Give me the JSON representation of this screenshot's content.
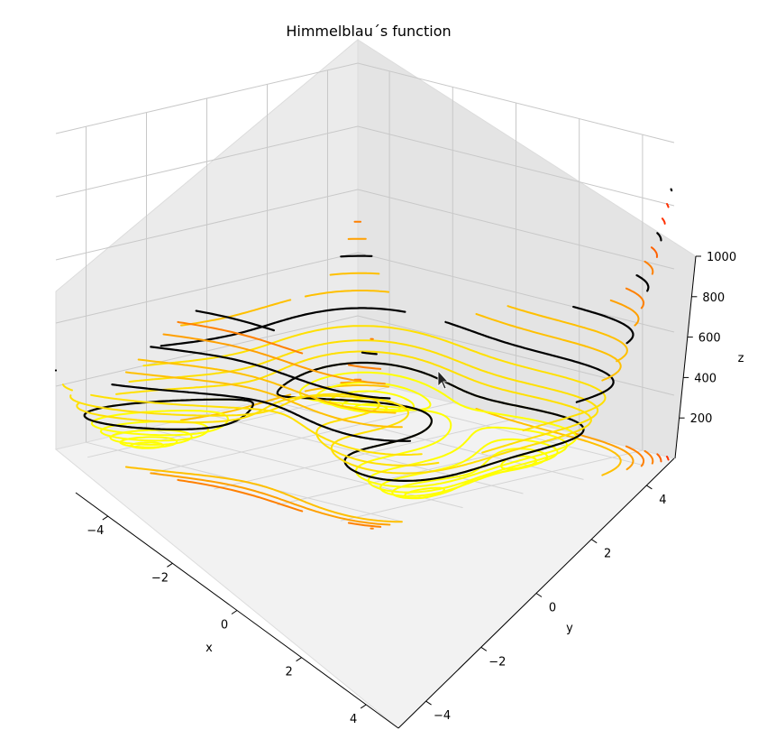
{
  "chart_data": {
    "type": "3d-contour",
    "title": "Himmelblau´s function",
    "xlabel": "x",
    "ylabel": "y",
    "zlabel": "z",
    "xlim": [
      -5,
      5
    ],
    "ylim": [
      -5,
      5
    ],
    "zlim": [
      0,
      1000
    ],
    "x_ticks": [
      "−4",
      "−2",
      "0",
      "2",
      "4"
    ],
    "y_ticks": [
      "4",
      "2",
      "0",
      "−2",
      "−4"
    ],
    "z_ticks": [
      "1000",
      "800",
      "600",
      "400",
      "200"
    ],
    "grid": true,
    "contour_levels_yellow": [
      5,
      15,
      30,
      50,
      75,
      100,
      130,
      160
    ],
    "contour_levels_black": [
      100,
      250,
      400,
      550,
      700,
      850
    ],
    "contour_levels_orange": [
      200,
      300,
      350,
      450,
      500,
      600,
      650,
      750,
      800,
      900,
      950
    ],
    "offset_levels": [
      300,
      400,
      500,
      600,
      700,
      800,
      900
    ],
    "colormap": [
      "#ffff00",
      "#ffe000",
      "#ffc000",
      "#ffa000",
      "#ff8000",
      "#ff6000",
      "#ff3000",
      "#e00000"
    ],
    "cursor": "arrow"
  }
}
